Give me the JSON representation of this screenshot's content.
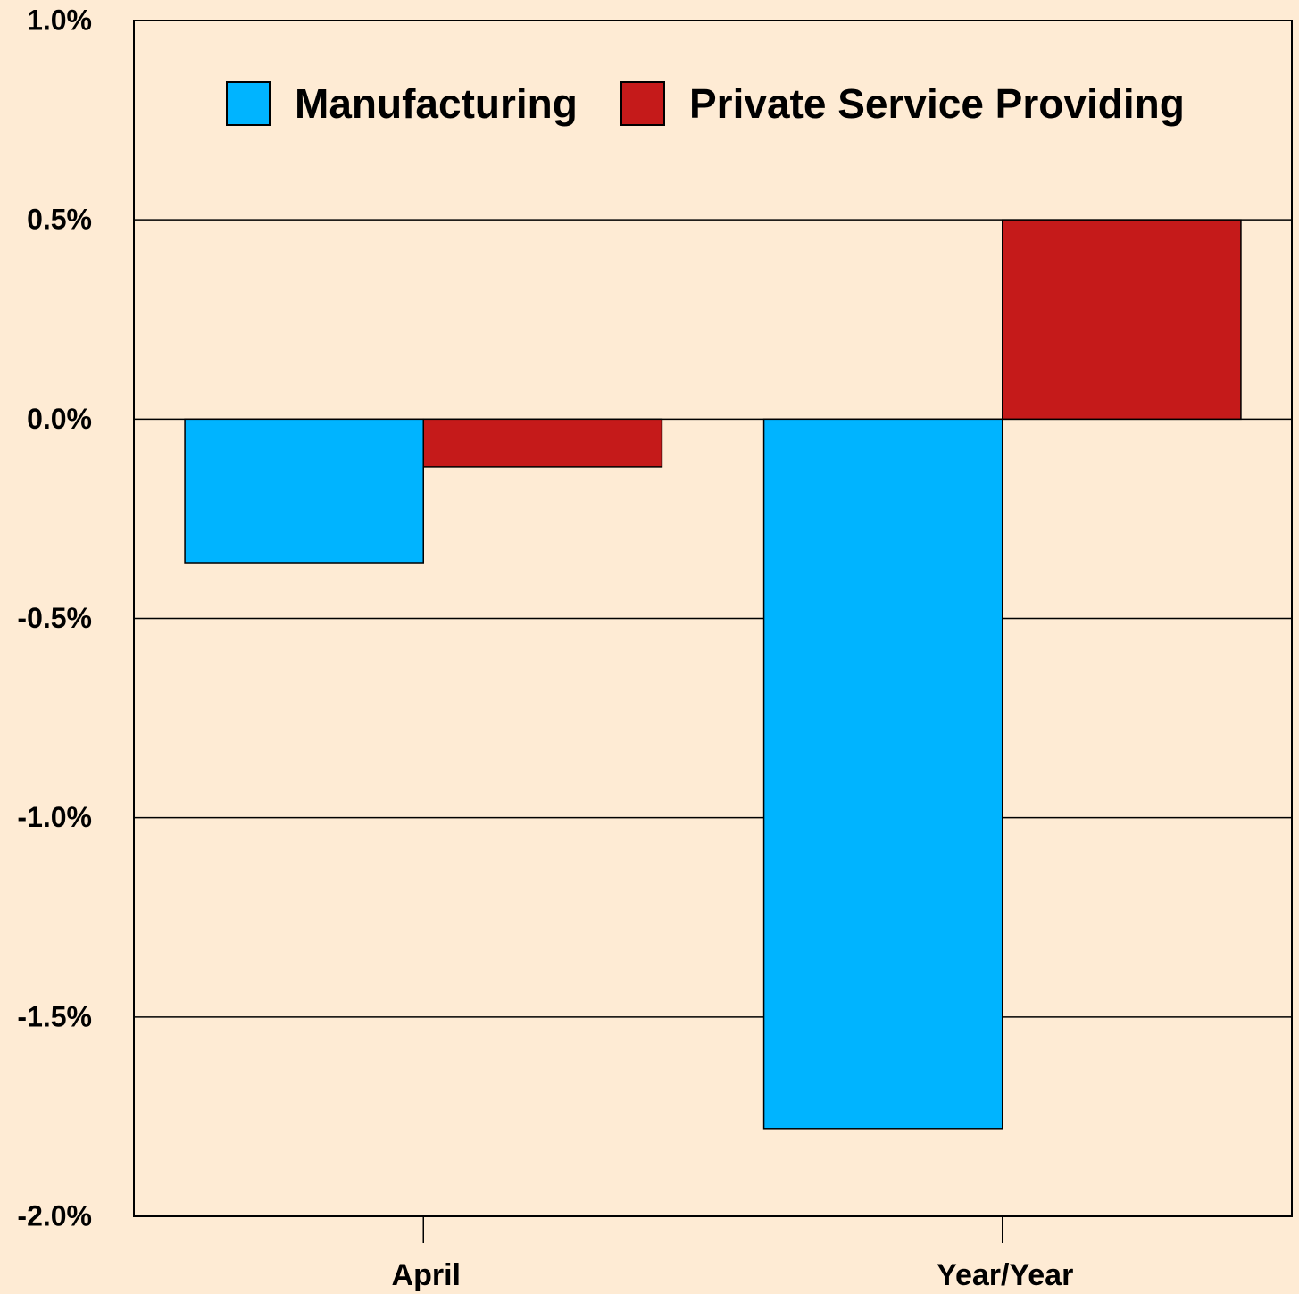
{
  "chart_data": {
    "type": "bar",
    "categories": [
      "April",
      "Year/Year"
    ],
    "series": [
      {
        "name": "Manufacturing",
        "color": "#00b4ff",
        "values": [
          -0.36,
          -1.78
        ]
      },
      {
        "name": "Private Service Providing",
        "color": "#c51a1a",
        "values": [
          -0.12,
          0.5
        ]
      }
    ],
    "ylim": [
      -2.0,
      1.0
    ],
    "yticks": [
      {
        "value": -2.0,
        "label": "-2.0%"
      },
      {
        "value": -1.5,
        "label": "-1.5%"
      },
      {
        "value": -1.0,
        "label": "-1.0%"
      },
      {
        "value": -0.5,
        "label": "-0.5%"
      },
      {
        "value": 0,
        "label": "0.0%"
      },
      {
        "value": 0.5,
        "label": "0.5%"
      },
      {
        "value": 1.0,
        "label": "1.0%"
      }
    ],
    "grid": true,
    "legend": "top"
  }
}
